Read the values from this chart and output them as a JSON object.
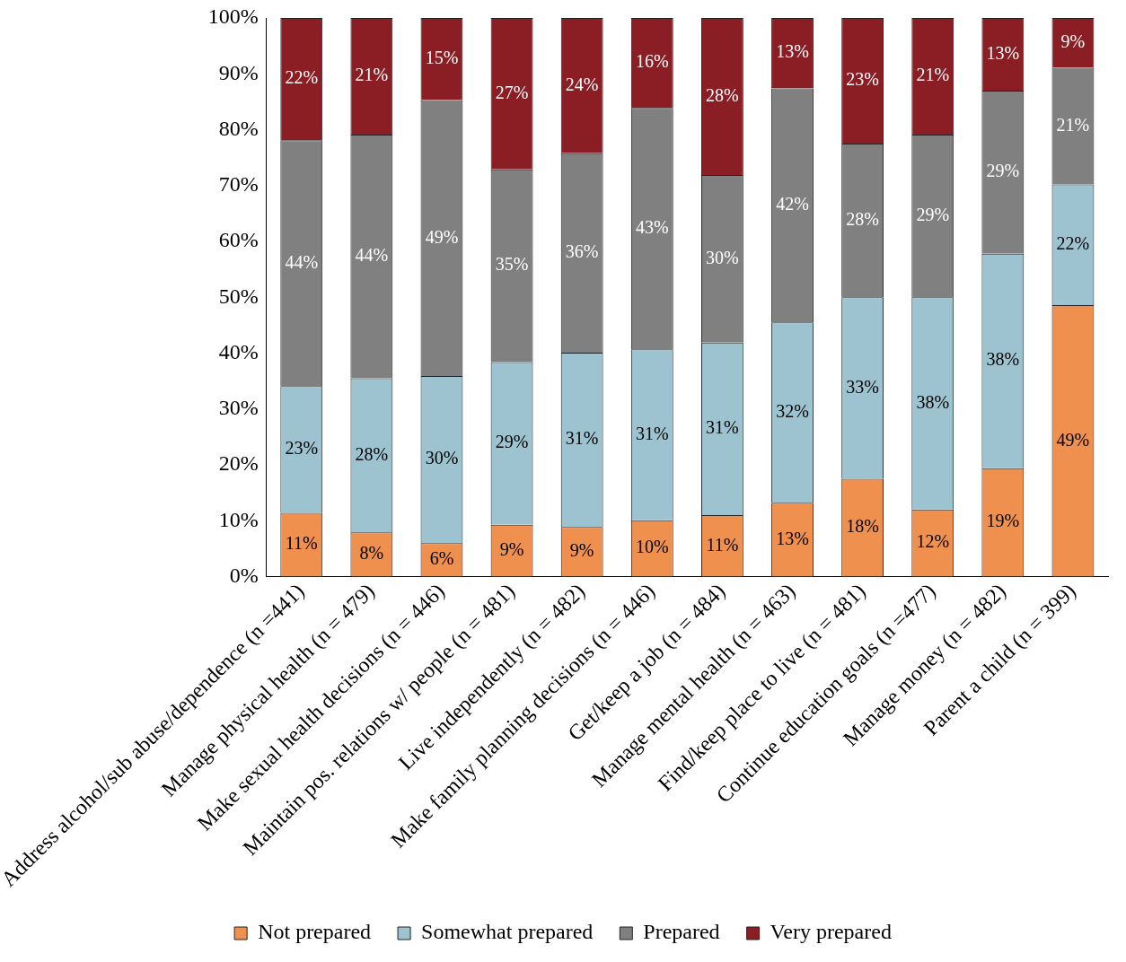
{
  "chart_data": {
    "type": "bar",
    "stacked": true,
    "categories": [
      "Address alcohol/sub abuse/dependence (n =441)",
      "Manage physical health (n = 479)",
      "Make sexual health decisions (n = 446)",
      "Maintain pos. relations w/ people (n = 481)",
      "Live independently (n = 482)",
      "Make family planning decisions (n = 446)",
      "Get/keep a job (n = 484)",
      "Manage mental health (n = 463)",
      "Find/keep place to live (n = 481)",
      "Continue education goals (n =477)",
      "Manage money (n = 482)",
      "Parent a child (n = 399)"
    ],
    "series": [
      {
        "name": "Not prepared",
        "color": "#f0904f",
        "values": [
          11.4,
          7.9,
          6.0,
          9.3,
          8.9,
          10.1,
          11.0,
          13.2,
          17.5,
          12.0,
          19.4,
          48.6
        ],
        "value_labels": [
          "11%",
          "8%",
          "6%",
          "9%",
          "9%",
          "10%",
          "11%",
          "13%",
          "18%",
          "12%",
          "19%",
          "49%"
        ]
      },
      {
        "name": "Somewhat prepared",
        "color": "#9dc3d0",
        "values": [
          22.7,
          27.6,
          29.9,
          29.1,
          31.2,
          30.6,
          30.9,
          32.3,
          32.5,
          38.0,
          38.4,
          21.6
        ],
        "value_labels": [
          "23%",
          "28%",
          "30%",
          "29%",
          "31%",
          "31%",
          "31%",
          "32%",
          "33%",
          "38%",
          "38%",
          "22%"
        ]
      },
      {
        "name": "Prepared",
        "color": "#808080",
        "values": [
          44.0,
          43.6,
          49.4,
          34.5,
          35.7,
          43.2,
          30.0,
          41.9,
          27.5,
          29.1,
          29.2,
          20.9
        ],
        "value_labels": [
          "44%",
          "44%",
          "49%",
          "35%",
          "36%",
          "43%",
          "30%",
          "42%",
          "28%",
          "29%",
          "29%",
          "21%"
        ]
      },
      {
        "name": "Very prepared",
        "color": "#8b1e24",
        "values": [
          21.9,
          20.9,
          14.7,
          27.1,
          24.2,
          16.1,
          28.1,
          12.6,
          22.5,
          20.9,
          13.0,
          8.9
        ],
        "value_labels": [
          "22%",
          "21%",
          "15%",
          "27%",
          "24%",
          "16%",
          "28%",
          "13%",
          "23%",
          "21%",
          "13%",
          "9%"
        ]
      }
    ],
    "ylim": [
      0,
      100
    ],
    "yticks": [
      {
        "value": 0,
        "label": "0%"
      },
      {
        "value": 10,
        "label": "10%"
      },
      {
        "value": 20,
        "label": "20%"
      },
      {
        "value": 30,
        "label": "30%"
      },
      {
        "value": 40,
        "label": "40%"
      },
      {
        "value": 50,
        "label": "50%"
      },
      {
        "value": 60,
        "label": "60%"
      },
      {
        "value": 70,
        "label": "70%"
      },
      {
        "value": 80,
        "label": "80%"
      },
      {
        "value": 90,
        "label": "90%"
      },
      {
        "value": 100,
        "label": "100%"
      }
    ],
    "grid": false,
    "legend": "bottom"
  }
}
